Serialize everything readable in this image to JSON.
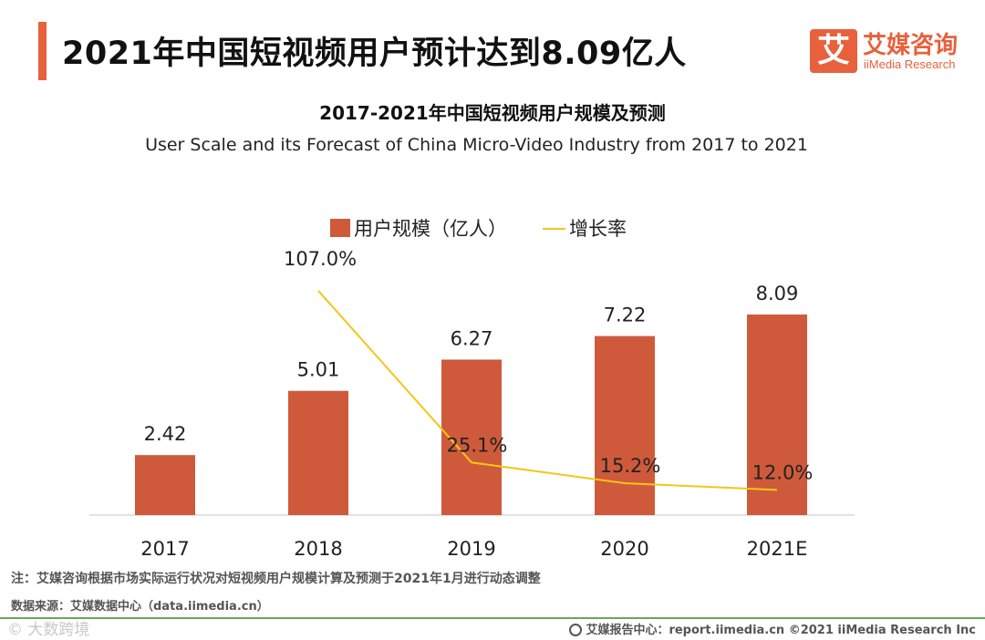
{
  "header": {
    "title": "2021年中国短视频用户预计达到8.09亿人",
    "logo_mark": "艾",
    "logo_cn": "艾媒咨询",
    "logo_en": "iiMedia Research"
  },
  "chart_data": {
    "type": "bar",
    "title": "2017-2021年中国短视频用户规模及预测",
    "subtitle": "User Scale and its Forecast of China Micro-Video Industry from 2017 to 2021",
    "categories": [
      "2017",
      "2018",
      "2019",
      "2020",
      "2021E"
    ],
    "series": [
      {
        "name": "用户规模（亿人）",
        "type": "bar",
        "axis": "left",
        "values": [
          2.42,
          5.01,
          6.27,
          7.22,
          8.09
        ],
        "labels": [
          "2.42",
          "5.01",
          "6.27",
          "7.22",
          "8.09"
        ],
        "color": "#cf5a3b"
      },
      {
        "name": "增长率",
        "type": "line",
        "axis": "right",
        "values": [
          null,
          107.0,
          25.1,
          15.2,
          12.0
        ],
        "labels": [
          "",
          "107.0%",
          "25.1%",
          "15.2%",
          "12.0%"
        ],
        "color": "#f5c518"
      }
    ],
    "ylim": [
      0,
      10
    ],
    "y2lim": [
      0,
      150
    ],
    "grid": false,
    "legend": "top-center"
  },
  "footer": {
    "note": "注：艾媒咨询根据市场实际运行状况对短视频用户规模计算及预测于2021年1月进行动态调整",
    "source": "数据来源：艾媒数据中心（data.iimedia.cn）",
    "watermark": "© 大数跨境",
    "credit": "艾媒报告中心：report.iimedia.cn   ©2021  iiMedia Research  Inc"
  }
}
